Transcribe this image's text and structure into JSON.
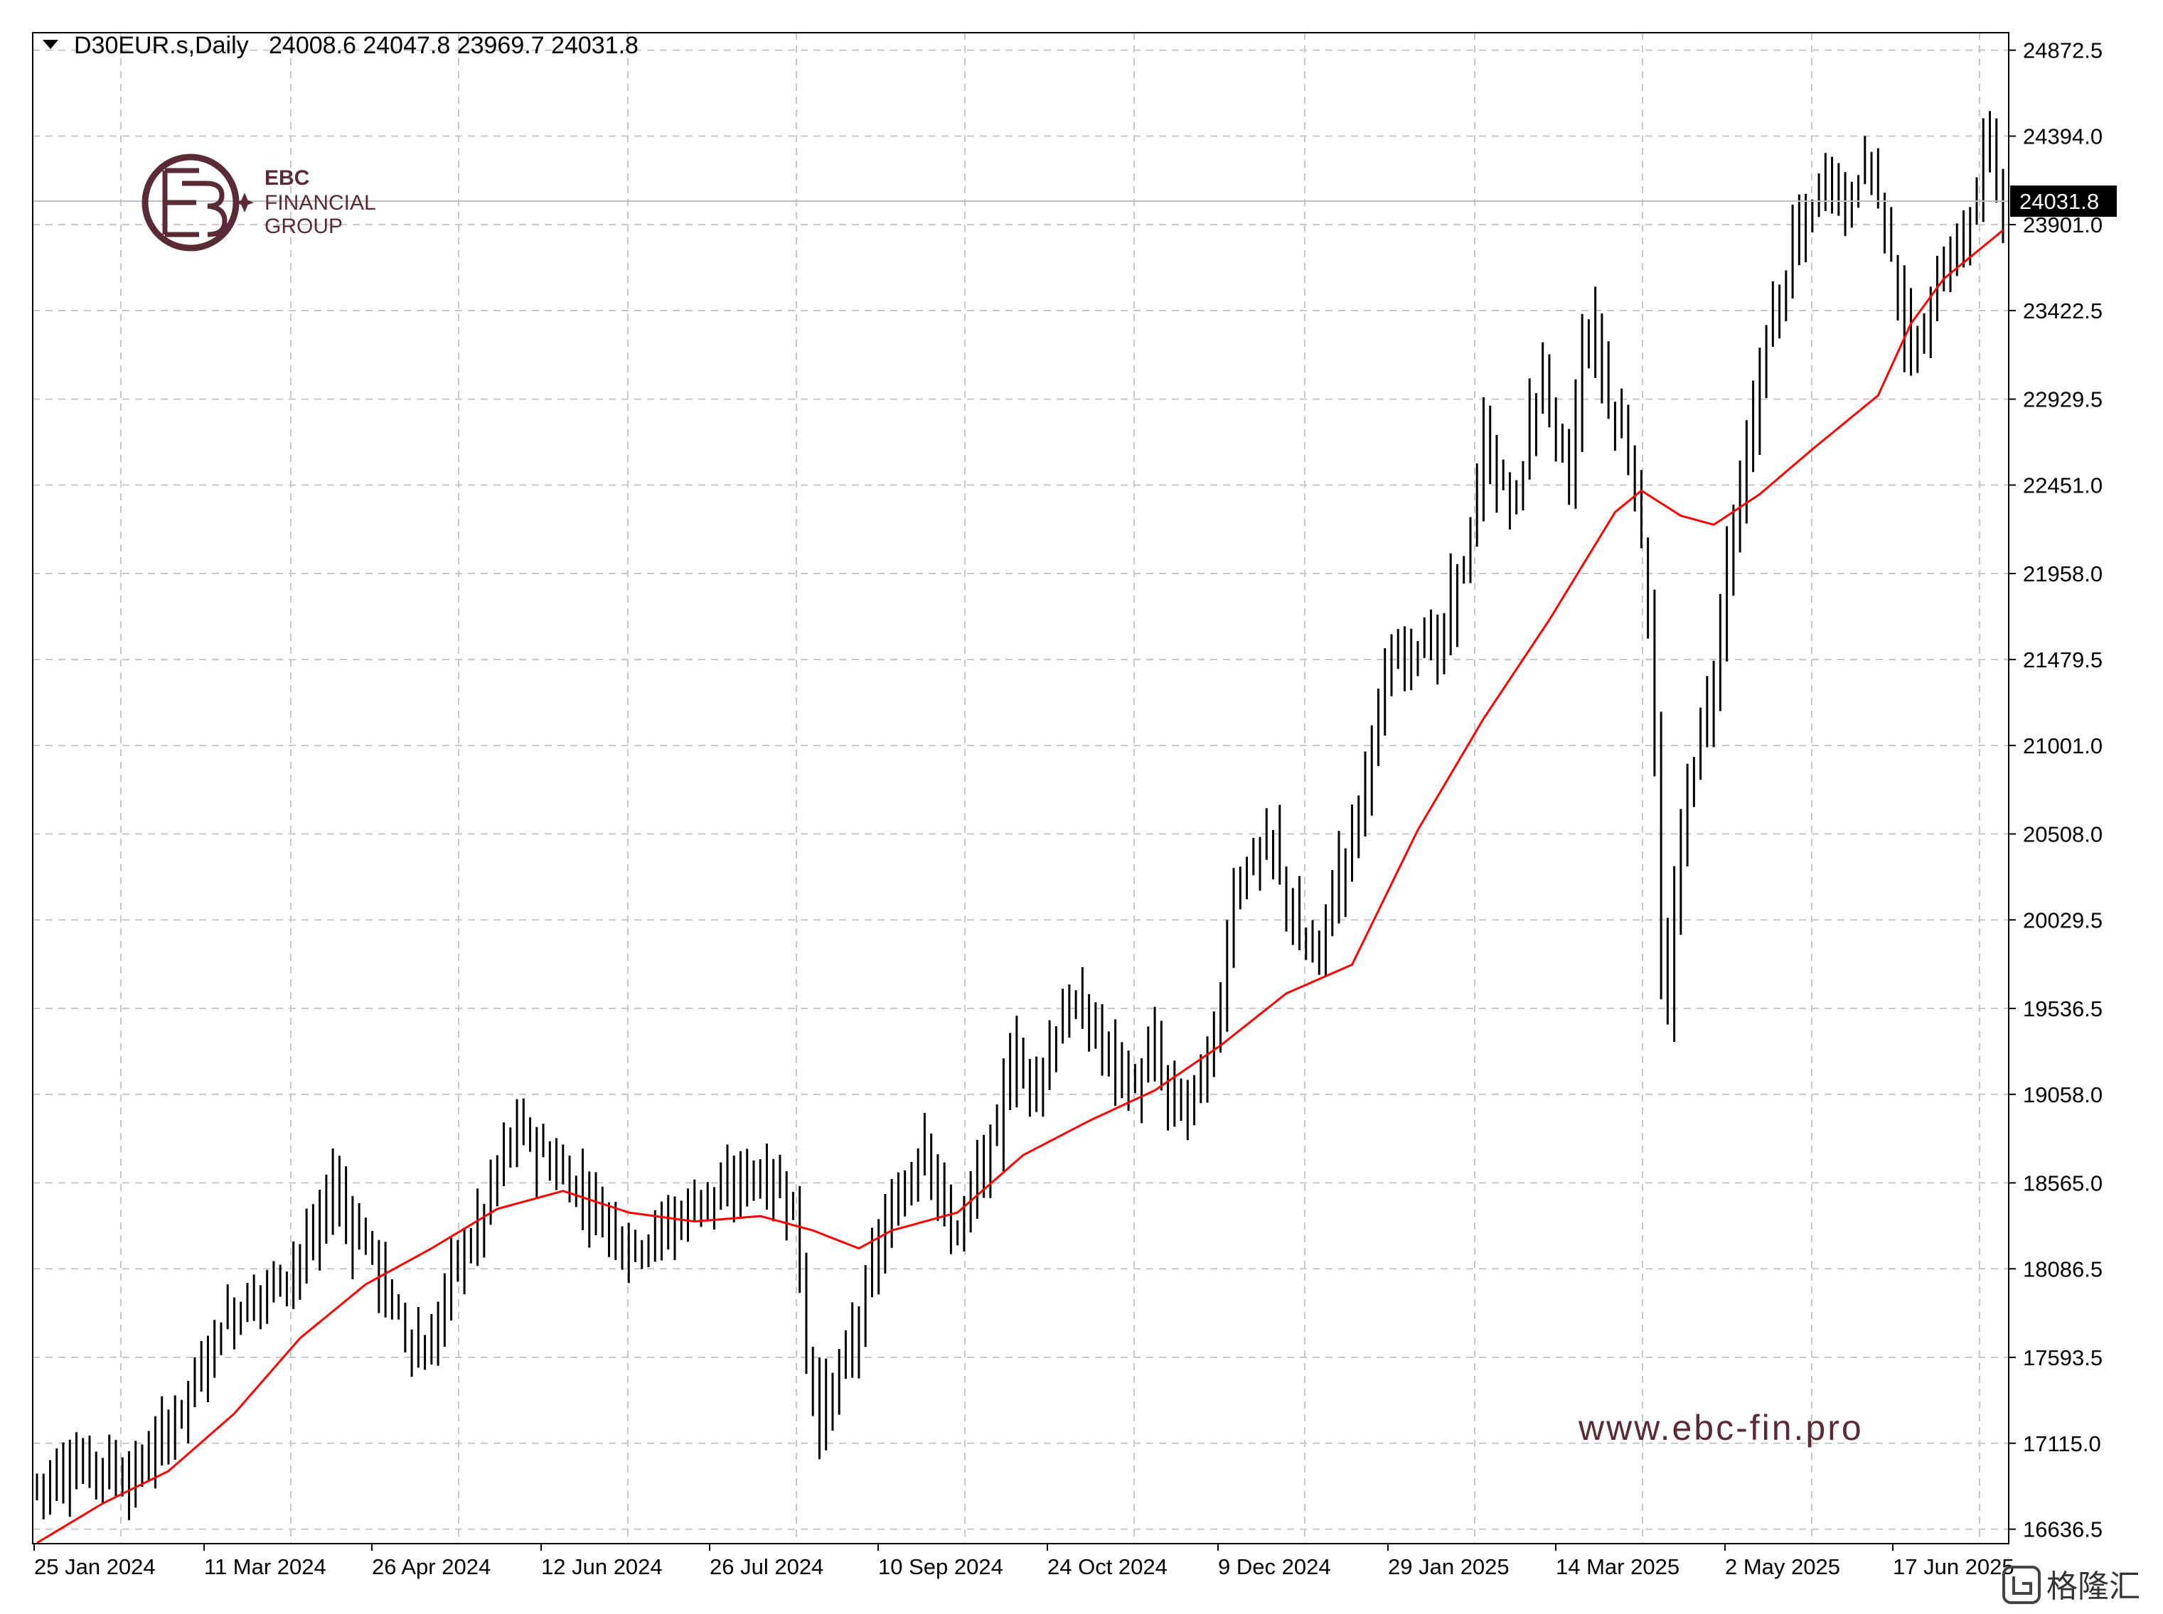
{
  "header": {
    "symbol": "D30EUR.s,Daily",
    "ohlc": "24008.6 24047.8 23969.7 24031.8"
  },
  "watermark": {
    "url": "www.ebc-fin.pro",
    "logo_line1": "EBC",
    "logo_line2": "FINANCIAL",
    "logo_line3": "GROUP",
    "corner_text": "格隆汇",
    "brand_color": "#5a2a36"
  },
  "chart_data": {
    "type": "ohlc",
    "ylim": [
      16556,
      24970
    ],
    "grid": true,
    "y_ticks": [
      "24872.5",
      "24394.0",
      "23901.0",
      "23422.5",
      "22929.5",
      "22451.0",
      "21958.0",
      "21479.5",
      "21001.0",
      "20508.0",
      "20029.5",
      "19536.5",
      "19058.0",
      "18565.0",
      "18086.5",
      "17593.5",
      "17115.0",
      "16636.5"
    ],
    "x_ticks": [
      "25 Jan 2024",
      "11 Mar 2024",
      "26 Apr 2024",
      "12 Jun 2024",
      "26 Jul 2024",
      "10 Sep 2024",
      "24 Oct 2024",
      "9 Dec 2024",
      "29 Jan 2025",
      "14 Mar 2025",
      "2 May 2025",
      "17 Jun 2025"
    ],
    "current_price": "24031.8",
    "colors": {
      "bars": "#000000",
      "ma": "#ff0000",
      "grid": "#c8c8c8",
      "price_line": "#c0c0c0"
    },
    "anchors": [
      [
        0,
        16880
      ],
      [
        5,
        16980
      ],
      [
        10,
        17000
      ],
      [
        14,
        16900
      ],
      [
        20,
        17200
      ],
      [
        24,
        17460
      ],
      [
        28,
        17780
      ],
      [
        32,
        17900
      ],
      [
        38,
        18070
      ],
      [
        42,
        18250
      ],
      [
        45,
        18560
      ],
      [
        48,
        18300
      ],
      [
        50,
        18250
      ],
      [
        53,
        17950
      ],
      [
        56,
        17750
      ],
      [
        58,
        17600
      ],
      [
        60,
        17650
      ],
      [
        63,
        18100
      ],
      [
        67,
        18300
      ],
      [
        70,
        18650
      ],
      [
        73,
        18880
      ],
      [
        76,
        18750
      ],
      [
        80,
        18600
      ],
      [
        83,
        18500
      ],
      [
        86,
        18380
      ],
      [
        90,
        18200
      ],
      [
        94,
        18280
      ],
      [
        98,
        18380
      ],
      [
        101,
        18500
      ],
      [
        104,
        18480
      ],
      [
        108,
        18620
      ],
      [
        112,
        18550
      ],
      [
        115,
        18450
      ],
      [
        117,
        17600
      ],
      [
        119,
        17250
      ],
      [
        122,
        17500
      ],
      [
        125,
        17800
      ],
      [
        128,
        18250
      ],
      [
        131,
        18450
      ],
      [
        133,
        18620
      ],
      [
        135,
        18820
      ],
      [
        137,
        18520
      ],
      [
        139,
        18280
      ],
      [
        141,
        18400
      ],
      [
        143,
        18600
      ],
      [
        146,
        18850
      ],
      [
        148,
        19280
      ],
      [
        150,
        19150
      ],
      [
        153,
        19180
      ],
      [
        156,
        19520
      ],
      [
        159,
        19520
      ],
      [
        162,
        19330
      ],
      [
        165,
        19180
      ],
      [
        167,
        19080
      ],
      [
        170,
        19320
      ],
      [
        172,
        19000
      ],
      [
        175,
        19020
      ],
      [
        178,
        19220
      ],
      [
        180,
        19580
      ],
      [
        182,
        20200
      ],
      [
        185,
        20380
      ],
      [
        188,
        20450
      ],
      [
        190,
        20150
      ],
      [
        192,
        19900
      ],
      [
        195,
        19850
      ],
      [
        197,
        20200
      ],
      [
        199,
        20380
      ],
      [
        201,
        20650
      ],
      [
        203,
        21050
      ],
      [
        206,
        21450
      ],
      [
        208,
        21520
      ],
      [
        211,
        21600
      ],
      [
        213,
        21500
      ],
      [
        215,
        21800
      ],
      [
        218,
        22150
      ],
      [
        220,
        22700
      ],
      [
        222,
        22480
      ],
      [
        225,
        22350
      ],
      [
        227,
        22800
      ],
      [
        229,
        23100
      ],
      [
        231,
        22700
      ],
      [
        233,
        22500
      ],
      [
        235,
        23200
      ],
      [
        237,
        23300
      ],
      [
        239,
        22900
      ],
      [
        241,
        22750
      ],
      [
        243,
        22500
      ],
      [
        245,
        21700
      ],
      [
        246,
        21000
      ],
      [
        247,
        19800
      ],
      [
        248,
        19500
      ],
      [
        249,
        20100
      ],
      [
        251,
        20750
      ],
      [
        253,
        21100
      ],
      [
        255,
        21350
      ],
      [
        257,
        22050
      ],
      [
        259,
        22400
      ],
      [
        261,
        22800
      ],
      [
        263,
        23300
      ],
      [
        265,
        23480
      ],
      [
        267,
        23800
      ],
      [
        269,
        23900
      ],
      [
        271,
        24100
      ],
      [
        273,
        24200
      ],
      [
        275,
        23950
      ],
      [
        277,
        24200
      ],
      [
        279,
        24250
      ],
      [
        281,
        23900
      ],
      [
        283,
        23500
      ],
      [
        285,
        23150
      ],
      [
        287,
        23300
      ],
      [
        289,
        23600
      ],
      [
        291,
        23700
      ],
      [
        293,
        23850
      ],
      [
        295,
        24050
      ],
      [
        296,
        24300
      ],
      [
        297,
        24450
      ],
      [
        298,
        24150
      ],
      [
        299,
        24040
      ]
    ],
    "ma_anchors": [
      [
        0,
        16560
      ],
      [
        10,
        16780
      ],
      [
        20,
        16960
      ],
      [
        30,
        17280
      ],
      [
        40,
        17700
      ],
      [
        50,
        18000
      ],
      [
        60,
        18200
      ],
      [
        70,
        18420
      ],
      [
        80,
        18520
      ],
      [
        90,
        18400
      ],
      [
        100,
        18350
      ],
      [
        110,
        18380
      ],
      [
        118,
        18300
      ],
      [
        125,
        18200
      ],
      [
        130,
        18300
      ],
      [
        140,
        18400
      ],
      [
        150,
        18720
      ],
      [
        160,
        18910
      ],
      [
        170,
        19080
      ],
      [
        180,
        19330
      ],
      [
        190,
        19620
      ],
      [
        200,
        19780
      ],
      [
        210,
        20530
      ],
      [
        220,
        21150
      ],
      [
        230,
        21700
      ],
      [
        240,
        22300
      ],
      [
        244,
        22420
      ],
      [
        250,
        22280
      ],
      [
        255,
        22230
      ],
      [
        262,
        22400
      ],
      [
        270,
        22650
      ],
      [
        280,
        22950
      ],
      [
        285,
        23350
      ],
      [
        290,
        23600
      ],
      [
        295,
        23750
      ],
      [
        299,
        23870
      ]
    ]
  }
}
